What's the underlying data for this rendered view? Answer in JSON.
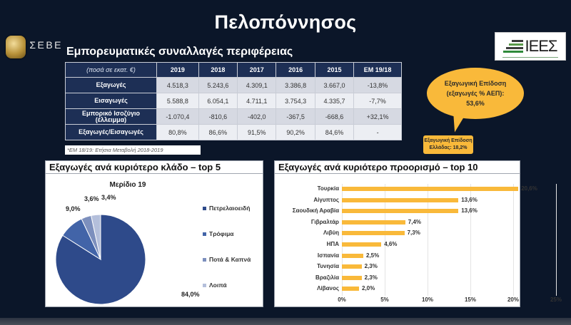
{
  "header": {
    "title": "Πελοπόννησος",
    "logo_left": "ΣΕΒΕ",
    "logo_right": "ΙΕΕΣ"
  },
  "trade_section": {
    "title": "Εμπορευματικές συναλλαγές περιφέρειας",
    "units": "(ποσά σε εκατ. €)",
    "columns": [
      "2019",
      "2018",
      "2017",
      "2016",
      "2015",
      "ΕΜ 19/18"
    ],
    "rows": [
      {
        "label": "Εξαγωγές",
        "values": [
          "4.518,3",
          "5.243,6",
          "4.309,1",
          "3.386,8",
          "3.667,0",
          "-13,8%"
        ]
      },
      {
        "label": "Εισαγωγές",
        "values": [
          "5.588,8",
          "6.054,1",
          "4.711,1",
          "3.754,3",
          "4.335,7",
          "-7,7%"
        ]
      },
      {
        "label": "Εμπορικό Ισοζύγιο (έλλειμμα)",
        "values": [
          "-1.070,4",
          "-810,6",
          "-402,0",
          "-367,5",
          "-668,6",
          "+32,1%"
        ]
      },
      {
        "label": "Εξαγωγές/Εισαγωγές",
        "values": [
          "80,8%",
          "86,6%",
          "91,5%",
          "90,2%",
          "84,6%",
          "-"
        ]
      }
    ],
    "footnote": "*ΕΜ 18/19: Ετήσια Μεταβολή 2018-2019"
  },
  "callout": {
    "line1": "Εξαγωγική Επίδοση",
    "line2": "(εξαγωγές % ΑΕΠ):",
    "line3": "53,6%",
    "color": "#f9b93a"
  },
  "greece_box": {
    "line1": "Εξαγωγική Επίδοση",
    "line2": "Ελλάδας: 18,2%"
  },
  "pie_panel": {
    "title": "Εξαγωγές ανά κυριότερο κλάδο – top 5"
  },
  "bar_panel": {
    "title": "Εξαγωγές ανά κυριότερο προορισμό – top 10"
  },
  "chart_data": [
    {
      "type": "pie",
      "title": "Μερίδιο 19",
      "categories": [
        "Πετρελαιοειδή",
        "Τρόφιμα",
        "Ποτά & Καπνά",
        "Λοιπά"
      ],
      "values": [
        84.0,
        9.0,
        3.6,
        3.4
      ],
      "labels": [
        "84,0%",
        "9,0%",
        "3,6%",
        "3,4%"
      ],
      "colors": [
        "#2e4a8a",
        "#4264a8",
        "#7c8fbd",
        "#b4bfdb"
      ],
      "legend_position": "right"
    },
    {
      "type": "bar",
      "orientation": "horizontal",
      "title": "Εξαγωγές ανά κυριότερο προορισμό – top 10",
      "categories": [
        "Τουρκία",
        "Αίγυπτος",
        "Σαουδική Αραβία",
        "Γιβραλτάρ",
        "Λιβύη",
        "ΗΠΑ",
        "Ισπανία",
        "Τυνησία",
        "Βραζιλία",
        "Λίβανος"
      ],
      "values": [
        20.6,
        13.6,
        13.6,
        7.4,
        7.3,
        4.6,
        2.5,
        2.3,
        2.3,
        2.0
      ],
      "labels": [
        "20,6%",
        "13,6%",
        "13,6%",
        "7,4%",
        "7,3%",
        "4,6%",
        "2,5%",
        "2,3%",
        "2,3%",
        "2,0%"
      ],
      "xticks": [
        "0%",
        "5%",
        "10%",
        "15%",
        "20%",
        "25%"
      ],
      "xlim": [
        0,
        25
      ],
      "color": "#f9b93a",
      "grid": true
    }
  ]
}
